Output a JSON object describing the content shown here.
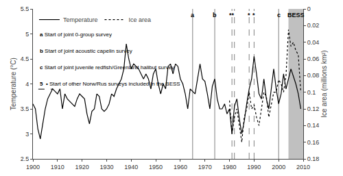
{
  "chart_data": {
    "type": "line",
    "ylabel": "Temperature (°C)",
    "y2label": "Ice area (millions km²)",
    "xlim": [
      1900,
      2010
    ],
    "xticks": [
      1900,
      1910,
      1920,
      1930,
      1940,
      1950,
      1960,
      1970,
      1980,
      1990,
      2000,
      2010
    ],
    "ylim": [
      2.5,
      5.5
    ],
    "yticks": [
      2.5,
      3,
      3.5,
      4,
      4.5,
      5,
      5.5
    ],
    "y2lim": [
      0.18,
      0
    ],
    "y2ticks": [
      0,
      0.02,
      0.04,
      0.06,
      0.08,
      0.1,
      0.12,
      0.14,
      0.16,
      0.18
    ],
    "grid": false,
    "legend": "upper left",
    "series": [
      {
        "name": "Temperature",
        "color": "black",
        "line_style": "solid",
        "x": [
          1900,
          1901,
          1902,
          1903,
          1904,
          1905,
          1906,
          1907,
          1908,
          1909,
          1910,
          1911,
          1912,
          1913,
          1914,
          1915,
          1916,
          1917,
          1918,
          1919,
          1920,
          1921,
          1922,
          1923,
          1924,
          1925,
          1926,
          1927,
          1928,
          1929,
          1930,
          1931,
          1932,
          1933,
          1934,
          1935,
          1936,
          1937,
          1938,
          1939,
          1940,
          1941,
          1942,
          1943,
          1944,
          1945,
          1946,
          1947,
          1948,
          1949,
          1950,
          1951,
          1952,
          1953,
          1954,
          1955,
          1956,
          1957,
          1958,
          1959,
          1960,
          1961,
          1962,
          1963,
          1964,
          1965,
          1966,
          1967,
          1968,
          1969,
          1970,
          1971,
          1972,
          1973,
          1974,
          1975,
          1976,
          1977,
          1978,
          1979,
          1980,
          1981,
          1982,
          1983,
          1984,
          1985,
          1986,
          1987,
          1988,
          1989,
          1990,
          1991,
          1992,
          1993,
          1994,
          1995,
          1996,
          1997,
          1998,
          1999,
          2000,
          2001,
          2002,
          2003,
          2004,
          2005,
          2006,
          2007,
          2008,
          2009
        ],
        "values": [
          3.6,
          3.5,
          3.1,
          2.9,
          3.2,
          3.5,
          3.7,
          3.8,
          3.9,
          3.85,
          3.8,
          3.9,
          3.5,
          3.8,
          3.7,
          3.65,
          3.6,
          3.55,
          3.7,
          3.8,
          3.75,
          3.7,
          3.4,
          3.2,
          3.45,
          3.5,
          3.8,
          3.75,
          3.5,
          3.45,
          3.5,
          3.6,
          3.8,
          3.75,
          3.9,
          4.0,
          4.1,
          4.3,
          4.8,
          4.5,
          4.3,
          4.4,
          4.35,
          4.3,
          4.2,
          4.1,
          4.2,
          4.1,
          3.9,
          4.2,
          4.3,
          4.0,
          3.8,
          4.0,
          3.9,
          4.35,
          4.4,
          4.2,
          4.4,
          4.35,
          4.1,
          4.0,
          3.8,
          3.5,
          3.9,
          3.85,
          3.8,
          4.1,
          4.4,
          4.1,
          4.05,
          3.8,
          3.5,
          3.95,
          4.1,
          3.7,
          3.5,
          3.5,
          3.6,
          3.4,
          3.5,
          3.0,
          3.55,
          3.7,
          3.3,
          3.0,
          3.25,
          3.6,
          3.9,
          4.1,
          4.55,
          4.2,
          3.8,
          3.7,
          4.1,
          3.7,
          3.5,
          3.9,
          4.3,
          3.9,
          3.6,
          3.8,
          4.2,
          3.9,
          4.1,
          4.3,
          4.15,
          4.0,
          3.8,
          3.5
        ]
      },
      {
        "name": "Ice area",
        "color": "black",
        "line_style": "dotted",
        "axis": "y2",
        "x": [
          1980,
          1981,
          1982,
          1983,
          1984,
          1985,
          1986,
          1987,
          1988,
          1989,
          1990,
          1991,
          1992,
          1993,
          1994,
          1995,
          1996,
          1997,
          1998,
          1999,
          2000,
          2001,
          2002,
          2003,
          2004,
          2005,
          2006,
          2007,
          2008,
          2009
        ],
        "values": [
          0.11,
          0.15,
          0.13,
          0.12,
          0.14,
          0.16,
          0.13,
          0.12,
          0.1,
          0.12,
          0.115,
          0.13,
          0.14,
          0.12,
          0.1,
          0.105,
          0.13,
          0.115,
          0.1,
          0.1,
          0.085,
          0.09,
          0.1,
          0.08,
          0.025,
          0.045,
          0.04,
          0.05,
          0.055,
          0.1
        ]
      }
    ],
    "shaded_region": {
      "start": 2004,
      "end": 2010,
      "color": "#c0c0c0"
    },
    "reference_lines": {
      "color": "gray",
      "solid": [
        1965,
        1974,
        2000
      ],
      "dashed": [
        1981,
        1982,
        1988,
        1990
      ]
    },
    "top_labels": [
      {
        "x": 1965,
        "text": "a"
      },
      {
        "x": 1974,
        "text": "b"
      },
      {
        "x": 1981,
        "text": "**"
      },
      {
        "x": 1988,
        "text": "*"
      },
      {
        "x": 1990,
        "text": "*"
      },
      {
        "x": 2000,
        "text": "c"
      },
      {
        "x": 2007,
        "text": "BESS"
      }
    ],
    "annotations": [
      {
        "prefix": "a",
        "text": "Start of joint 0-group survey"
      },
      {
        "prefix": "b",
        "text": "Start of joint acoustic capelin survey"
      },
      {
        "prefix": "c",
        "text": "Start of joint juvenile redfish/Greenland halibut survey"
      },
      {
        "prefix": "5  •",
        "text": "Start of other Norw/Rus surveys included in the BESS"
      }
    ]
  }
}
